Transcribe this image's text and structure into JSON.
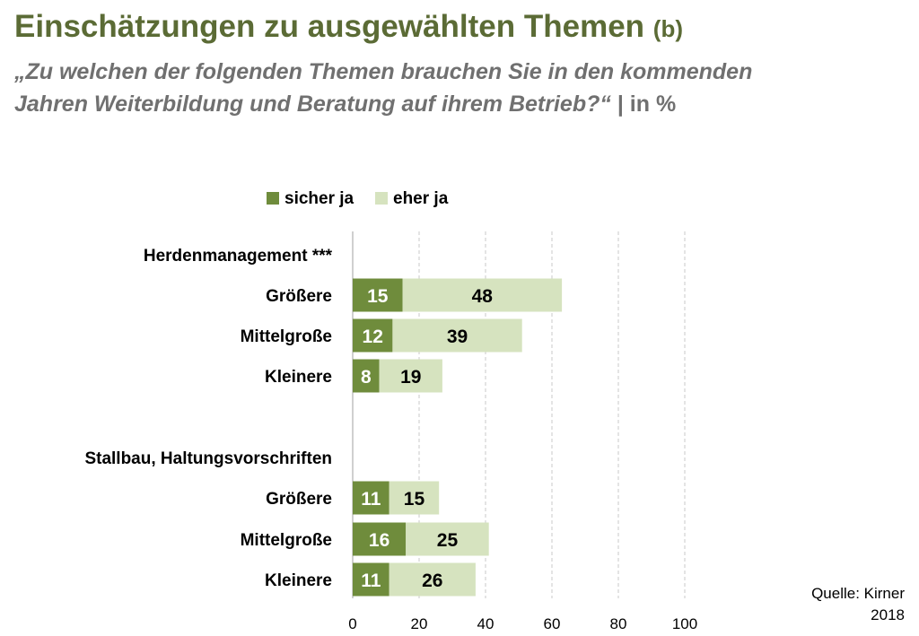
{
  "title": {
    "main": "Einschätzungen zu ausgewählten Themen",
    "suffix": "(b)"
  },
  "subtitle": {
    "question": "„Zu welchen der folgenden Themen brauchen Sie in den kommenden Jahren Weiterbildung und Beratung auf ihrem Betrieb?“",
    "unit": "| in %"
  },
  "source": {
    "line1": "Quelle: Kirner",
    "line2": "2018"
  },
  "colors": {
    "sicher_ja": "#6f8c3c",
    "eher_ja": "#d6e3bf",
    "title": "#5b6b35",
    "grid": "#c8c8c8"
  },
  "chart_data": {
    "type": "bar",
    "orientation": "horizontal",
    "stacked": true,
    "legend": {
      "position": "top",
      "entries": [
        "sicher ja",
        "eher ja"
      ]
    },
    "xlim": [
      0,
      100
    ],
    "xticks": [
      "0",
      "20",
      "40",
      "60",
      "80",
      "100"
    ],
    "grid": "vertical dashed",
    "groups": [
      {
        "label": "Herdenmanagement ***",
        "categories": [
          "Größere",
          "Mittelgroße",
          "Kleinere"
        ],
        "series": [
          {
            "name": "sicher ja",
            "values": [
              15,
              12,
              8
            ]
          },
          {
            "name": "eher ja",
            "values": [
              48,
              39,
              19
            ]
          }
        ]
      },
      {
        "label": "Stallbau, Haltungsvorschriften",
        "categories": [
          "Größere",
          "Mittelgroße",
          "Kleinere"
        ],
        "series": [
          {
            "name": "sicher ja",
            "values": [
              11,
              16,
              11
            ]
          },
          {
            "name": "eher ja",
            "values": [
              15,
              25,
              26
            ]
          }
        ]
      }
    ]
  }
}
